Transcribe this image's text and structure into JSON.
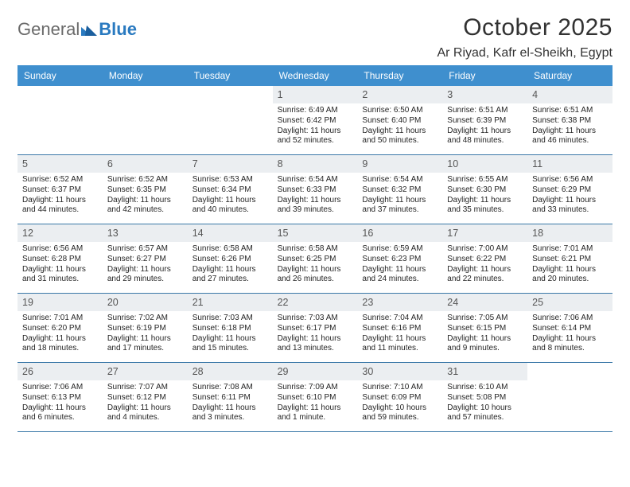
{
  "logo": {
    "general": "General",
    "blue": "Blue"
  },
  "title": "October 2025",
  "location": "Ar Riyad, Kafr el-Sheikh, Egypt",
  "colors": {
    "header_bg": "#3f8fce",
    "header_text": "#ffffff",
    "row_border": "#3a78a8",
    "daynum_bg": "#ebeef1",
    "logo_blue": "#2a7ac0",
    "logo_gray": "#6a6a6a"
  },
  "dow": [
    "Sunday",
    "Monday",
    "Tuesday",
    "Wednesday",
    "Thursday",
    "Friday",
    "Saturday"
  ],
  "weeks": [
    [
      null,
      null,
      null,
      {
        "n": "1",
        "sr": "Sunrise: 6:49 AM",
        "ss": "Sunset: 6:42 PM",
        "dl": "Daylight: 11 hours and 52 minutes."
      },
      {
        "n": "2",
        "sr": "Sunrise: 6:50 AM",
        "ss": "Sunset: 6:40 PM",
        "dl": "Daylight: 11 hours and 50 minutes."
      },
      {
        "n": "3",
        "sr": "Sunrise: 6:51 AM",
        "ss": "Sunset: 6:39 PM",
        "dl": "Daylight: 11 hours and 48 minutes."
      },
      {
        "n": "4",
        "sr": "Sunrise: 6:51 AM",
        "ss": "Sunset: 6:38 PM",
        "dl": "Daylight: 11 hours and 46 minutes."
      }
    ],
    [
      {
        "n": "5",
        "sr": "Sunrise: 6:52 AM",
        "ss": "Sunset: 6:37 PM",
        "dl": "Daylight: 11 hours and 44 minutes."
      },
      {
        "n": "6",
        "sr": "Sunrise: 6:52 AM",
        "ss": "Sunset: 6:35 PM",
        "dl": "Daylight: 11 hours and 42 minutes."
      },
      {
        "n": "7",
        "sr": "Sunrise: 6:53 AM",
        "ss": "Sunset: 6:34 PM",
        "dl": "Daylight: 11 hours and 40 minutes."
      },
      {
        "n": "8",
        "sr": "Sunrise: 6:54 AM",
        "ss": "Sunset: 6:33 PM",
        "dl": "Daylight: 11 hours and 39 minutes."
      },
      {
        "n": "9",
        "sr": "Sunrise: 6:54 AM",
        "ss": "Sunset: 6:32 PM",
        "dl": "Daylight: 11 hours and 37 minutes."
      },
      {
        "n": "10",
        "sr": "Sunrise: 6:55 AM",
        "ss": "Sunset: 6:30 PM",
        "dl": "Daylight: 11 hours and 35 minutes."
      },
      {
        "n": "11",
        "sr": "Sunrise: 6:56 AM",
        "ss": "Sunset: 6:29 PM",
        "dl": "Daylight: 11 hours and 33 minutes."
      }
    ],
    [
      {
        "n": "12",
        "sr": "Sunrise: 6:56 AM",
        "ss": "Sunset: 6:28 PM",
        "dl": "Daylight: 11 hours and 31 minutes."
      },
      {
        "n": "13",
        "sr": "Sunrise: 6:57 AM",
        "ss": "Sunset: 6:27 PM",
        "dl": "Daylight: 11 hours and 29 minutes."
      },
      {
        "n": "14",
        "sr": "Sunrise: 6:58 AM",
        "ss": "Sunset: 6:26 PM",
        "dl": "Daylight: 11 hours and 27 minutes."
      },
      {
        "n": "15",
        "sr": "Sunrise: 6:58 AM",
        "ss": "Sunset: 6:25 PM",
        "dl": "Daylight: 11 hours and 26 minutes."
      },
      {
        "n": "16",
        "sr": "Sunrise: 6:59 AM",
        "ss": "Sunset: 6:23 PM",
        "dl": "Daylight: 11 hours and 24 minutes."
      },
      {
        "n": "17",
        "sr": "Sunrise: 7:00 AM",
        "ss": "Sunset: 6:22 PM",
        "dl": "Daylight: 11 hours and 22 minutes."
      },
      {
        "n": "18",
        "sr": "Sunrise: 7:01 AM",
        "ss": "Sunset: 6:21 PM",
        "dl": "Daylight: 11 hours and 20 minutes."
      }
    ],
    [
      {
        "n": "19",
        "sr": "Sunrise: 7:01 AM",
        "ss": "Sunset: 6:20 PM",
        "dl": "Daylight: 11 hours and 18 minutes."
      },
      {
        "n": "20",
        "sr": "Sunrise: 7:02 AM",
        "ss": "Sunset: 6:19 PM",
        "dl": "Daylight: 11 hours and 17 minutes."
      },
      {
        "n": "21",
        "sr": "Sunrise: 7:03 AM",
        "ss": "Sunset: 6:18 PM",
        "dl": "Daylight: 11 hours and 15 minutes."
      },
      {
        "n": "22",
        "sr": "Sunrise: 7:03 AM",
        "ss": "Sunset: 6:17 PM",
        "dl": "Daylight: 11 hours and 13 minutes."
      },
      {
        "n": "23",
        "sr": "Sunrise: 7:04 AM",
        "ss": "Sunset: 6:16 PM",
        "dl": "Daylight: 11 hours and 11 minutes."
      },
      {
        "n": "24",
        "sr": "Sunrise: 7:05 AM",
        "ss": "Sunset: 6:15 PM",
        "dl": "Daylight: 11 hours and 9 minutes."
      },
      {
        "n": "25",
        "sr": "Sunrise: 7:06 AM",
        "ss": "Sunset: 6:14 PM",
        "dl": "Daylight: 11 hours and 8 minutes."
      }
    ],
    [
      {
        "n": "26",
        "sr": "Sunrise: 7:06 AM",
        "ss": "Sunset: 6:13 PM",
        "dl": "Daylight: 11 hours and 6 minutes."
      },
      {
        "n": "27",
        "sr": "Sunrise: 7:07 AM",
        "ss": "Sunset: 6:12 PM",
        "dl": "Daylight: 11 hours and 4 minutes."
      },
      {
        "n": "28",
        "sr": "Sunrise: 7:08 AM",
        "ss": "Sunset: 6:11 PM",
        "dl": "Daylight: 11 hours and 3 minutes."
      },
      {
        "n": "29",
        "sr": "Sunrise: 7:09 AM",
        "ss": "Sunset: 6:10 PM",
        "dl": "Daylight: 11 hours and 1 minute."
      },
      {
        "n": "30",
        "sr": "Sunrise: 7:10 AM",
        "ss": "Sunset: 6:09 PM",
        "dl": "Daylight: 10 hours and 59 minutes."
      },
      {
        "n": "31",
        "sr": "Sunrise: 6:10 AM",
        "ss": "Sunset: 5:08 PM",
        "dl": "Daylight: 10 hours and 57 minutes."
      },
      null
    ]
  ]
}
